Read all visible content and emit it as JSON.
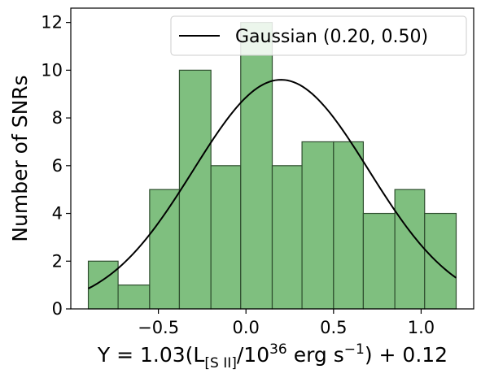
{
  "chart_data": {
    "type": "bar",
    "bins": [
      {
        "x0": -0.9,
        "x1": -0.73,
        "count": 2
      },
      {
        "x0": -0.73,
        "x1": -0.55,
        "count": 1
      },
      {
        "x0": -0.55,
        "x1": -0.38,
        "count": 5
      },
      {
        "x0": -0.38,
        "x1": -0.2,
        "count": 10
      },
      {
        "x0": -0.2,
        "x1": -0.03,
        "count": 6
      },
      {
        "x0": -0.03,
        "x1": 0.15,
        "count": 12
      },
      {
        "x0": 0.15,
        "x1": 0.32,
        "count": 6
      },
      {
        "x0": 0.32,
        "x1": 0.5,
        "count": 7
      },
      {
        "x0": 0.5,
        "x1": 0.67,
        "count": 7
      },
      {
        "x0": 0.67,
        "x1": 0.85,
        "count": 4
      },
      {
        "x0": 0.85,
        "x1": 1.02,
        "count": 5
      },
      {
        "x0": 1.02,
        "x1": 1.2,
        "count": 4
      }
    ],
    "gaussian": {
      "mean": 0.2,
      "sigma": 0.5,
      "peak": 9.6,
      "x_range": [
        -0.9,
        1.2
      ]
    },
    "xlim": [
      -1.0,
      1.3
    ],
    "ylim": [
      0,
      12.6
    ],
    "xticks": [
      -0.5,
      0.0,
      0.5,
      1.0
    ],
    "xtick_labels": [
      "−0.5",
      "0.0",
      "0.5",
      "1.0"
    ],
    "yticks": [
      0,
      2,
      4,
      6,
      8,
      10,
      12
    ],
    "ytick_labels": [
      "0",
      "2",
      "4",
      "6",
      "8",
      "10",
      "12"
    ],
    "ylabel": "Number of SNRs",
    "xlabel": {
      "prefix": "Y = 1.03(L",
      "sub": "[S II]",
      "mid1": "/10",
      "sup1": "36",
      "mid2": " erg s",
      "sup2": "−1",
      "suffix": ") + 0.12"
    },
    "legend": {
      "label": "Gaussian (0.20, 0.50)",
      "position": "top-right"
    },
    "colors": {
      "bar_fill": "#7fbf7f",
      "bar_edge": "#2f4f2f",
      "curve": "#000000"
    }
  }
}
